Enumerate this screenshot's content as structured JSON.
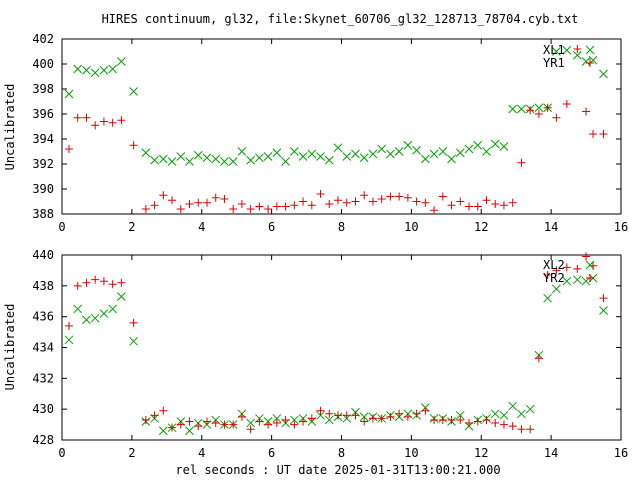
{
  "title": "HIRES continuum, gl32, file:Skynet_60706_gl32_128713_78704.cyb.txt",
  "xlabel": "rel seconds : UT date 2025-01-31T13:00:21.000",
  "chart_data": [
    {
      "type": "scatter",
      "ylabel": "Uncalibrated",
      "xlim": [
        0,
        16
      ],
      "ylim": [
        388,
        402
      ],
      "xticks": [
        "0",
        "2",
        "4",
        "6",
        "8",
        "10",
        "12",
        "14",
        "16"
      ],
      "yticks": [
        "388",
        "390",
        "392",
        "394",
        "396",
        "398",
        "400",
        "402"
      ],
      "legend_position": "top-right",
      "series": [
        {
          "name": "XL1",
          "marker": "x",
          "color": "#00a000",
          "x": [
            0.2,
            0.45,
            0.7,
            0.95,
            1.2,
            1.45,
            1.7,
            2.05,
            2.4,
            2.65,
            2.9,
            3.15,
            3.4,
            3.65,
            3.9,
            4.15,
            4.4,
            4.65,
            4.9,
            5.15,
            5.4,
            5.65,
            5.9,
            6.15,
            6.4,
            6.65,
            6.9,
            7.15,
            7.4,
            7.65,
            7.9,
            8.15,
            8.4,
            8.65,
            8.9,
            9.15,
            9.4,
            9.65,
            9.9,
            10.15,
            10.4,
            10.65,
            10.9,
            11.15,
            11.4,
            11.65,
            11.9,
            12.15,
            12.4,
            12.65,
            12.9,
            13.15,
            13.4,
            13.65,
            13.9,
            14.15,
            14.45,
            14.75,
            15.0,
            15.2,
            15.5
          ],
          "y": [
            397.6,
            399.6,
            399.5,
            399.3,
            399.5,
            399.6,
            400.2,
            397.8,
            392.9,
            392.3,
            392.4,
            392.2,
            392.6,
            392.2,
            392.7,
            392.5,
            392.4,
            392.2,
            392.2,
            393.0,
            392.3,
            392.5,
            392.6,
            392.9,
            392.2,
            393.0,
            392.6,
            392.8,
            392.6,
            392.3,
            393.3,
            392.6,
            392.8,
            392.5,
            392.8,
            393.2,
            392.8,
            393.0,
            393.5,
            393.1,
            392.4,
            392.8,
            393.0,
            392.4,
            392.9,
            393.2,
            393.5,
            393.0,
            393.6,
            393.4,
            396.4,
            396.4,
            396.4,
            396.5,
            396.5,
            401.0,
            401.1,
            400.7,
            400.2,
            400.3,
            399.2
          ]
        },
        {
          "name": "YR1",
          "marker": "+",
          "color": "#e00000",
          "x": [
            0.2,
            0.45,
            0.7,
            0.95,
            1.2,
            1.45,
            1.7,
            2.05,
            2.4,
            2.65,
            2.9,
            3.15,
            3.4,
            3.65,
            3.9,
            4.15,
            4.4,
            4.65,
            4.9,
            5.15,
            5.4,
            5.65,
            5.9,
            6.15,
            6.4,
            6.65,
            6.9,
            7.15,
            7.4,
            7.65,
            7.9,
            8.15,
            8.4,
            8.65,
            8.9,
            9.15,
            9.4,
            9.65,
            9.9,
            10.15,
            10.4,
            10.65,
            10.9,
            11.15,
            11.4,
            11.65,
            11.9,
            12.15,
            12.4,
            12.65,
            12.9,
            13.15,
            13.4,
            13.65,
            13.9,
            14.15,
            14.45,
            14.75,
            15.0,
            15.2,
            15.5
          ],
          "y": [
            393.2,
            395.7,
            395.7,
            395.1,
            395.4,
            395.3,
            395.5,
            393.5,
            388.4,
            388.7,
            389.5,
            389.1,
            388.4,
            388.8,
            388.9,
            388.9,
            389.3,
            389.2,
            388.4,
            388.8,
            388.4,
            388.6,
            388.4,
            388.6,
            388.6,
            388.7,
            389.0,
            388.7,
            389.6,
            388.8,
            389.1,
            388.9,
            389.0,
            389.5,
            389.0,
            389.2,
            389.4,
            389.4,
            389.3,
            389.0,
            388.9,
            388.3,
            389.4,
            388.7,
            389.0,
            388.6,
            388.6,
            389.1,
            388.8,
            388.7,
            388.9,
            392.1,
            396.3,
            396.0,
            396.5,
            395.7,
            396.8,
            401.2,
            396.2,
            394.4,
            394.4
          ]
        }
      ]
    },
    {
      "type": "scatter",
      "ylabel": "Uncalibrated",
      "xlim": [
        0,
        16
      ],
      "ylim": [
        428,
        440
      ],
      "xticks": [
        "0",
        "2",
        "4",
        "6",
        "8",
        "10",
        "12",
        "14",
        "16"
      ],
      "yticks": [
        "428",
        "430",
        "432",
        "434",
        "436",
        "438",
        "440"
      ],
      "legend_position": "top-right",
      "series": [
        {
          "name": "XL2",
          "marker": "x",
          "color": "#00a000",
          "x": [
            0.2,
            0.45,
            0.7,
            0.95,
            1.2,
            1.45,
            1.7,
            2.05,
            2.4,
            2.65,
            2.9,
            3.15,
            3.4,
            3.65,
            3.9,
            4.15,
            4.4,
            4.65,
            4.9,
            5.15,
            5.4,
            5.65,
            5.9,
            6.15,
            6.4,
            6.65,
            6.9,
            7.15,
            7.4,
            7.65,
            7.9,
            8.15,
            8.4,
            8.65,
            8.9,
            9.15,
            9.4,
            9.65,
            9.9,
            10.15,
            10.4,
            10.65,
            10.9,
            11.15,
            11.4,
            11.65,
            11.9,
            12.15,
            12.4,
            12.65,
            12.9,
            13.15,
            13.4,
            13.65,
            13.9,
            14.15,
            14.45,
            14.75,
            15.0,
            15.2,
            15.5
          ],
          "y": [
            434.5,
            436.5,
            435.8,
            435.9,
            436.2,
            436.5,
            437.3,
            434.4,
            429.2,
            429.4,
            428.6,
            428.8,
            429.2,
            428.6,
            429.1,
            429.0,
            429.3,
            429.0,
            429.0,
            429.7,
            429.1,
            429.4,
            429.2,
            429.4,
            429.1,
            429.3,
            429.4,
            429.2,
            429.6,
            429.3,
            429.5,
            429.4,
            429.8,
            429.5,
            429.5,
            429.4,
            429.6,
            429.5,
            429.7,
            429.6,
            430.1,
            429.4,
            429.4,
            429.2,
            429.6,
            428.9,
            429.3,
            429.4,
            429.7,
            429.6,
            430.2,
            429.7,
            430.0,
            433.5,
            437.2,
            437.8,
            438.3,
            438.4,
            438.3,
            438.5,
            436.4
          ]
        },
        {
          "name": "YR2",
          "marker": "+",
          "color": "#e00000",
          "x": [
            0.2,
            0.45,
            0.7,
            0.95,
            1.2,
            1.45,
            1.7,
            2.05,
            2.4,
            2.65,
            2.9,
            3.15,
            3.4,
            3.65,
            3.9,
            4.15,
            4.4,
            4.65,
            4.9,
            5.15,
            5.4,
            5.65,
            5.9,
            6.15,
            6.4,
            6.65,
            6.9,
            7.15,
            7.4,
            7.65,
            7.9,
            8.15,
            8.4,
            8.65,
            8.9,
            9.15,
            9.4,
            9.65,
            9.9,
            10.15,
            10.4,
            10.65,
            10.9,
            11.15,
            11.4,
            11.65,
            11.9,
            12.15,
            12.4,
            12.65,
            12.9,
            13.15,
            13.4,
            13.65,
            13.9,
            14.15,
            14.45,
            14.75,
            15.0,
            15.2,
            15.5
          ],
          "y": [
            435.4,
            438.0,
            438.2,
            438.4,
            438.3,
            438.1,
            438.2,
            435.6,
            429.3,
            429.6,
            429.9,
            428.8,
            429.0,
            429.2,
            428.9,
            429.2,
            429.1,
            429.0,
            429.0,
            429.5,
            428.7,
            429.2,
            429.0,
            429.1,
            429.3,
            429.0,
            429.2,
            429.4,
            429.9,
            429.7,
            429.6,
            429.6,
            429.6,
            429.2,
            429.4,
            429.4,
            429.5,
            429.7,
            429.5,
            429.7,
            429.9,
            429.3,
            429.3,
            429.3,
            429.3,
            429.1,
            429.2,
            429.3,
            429.1,
            429.0,
            428.9,
            428.7,
            428.7,
            433.3,
            438.7,
            439.0,
            439.2,
            439.1,
            439.9,
            439.3,
            437.2
          ]
        }
      ]
    }
  ]
}
